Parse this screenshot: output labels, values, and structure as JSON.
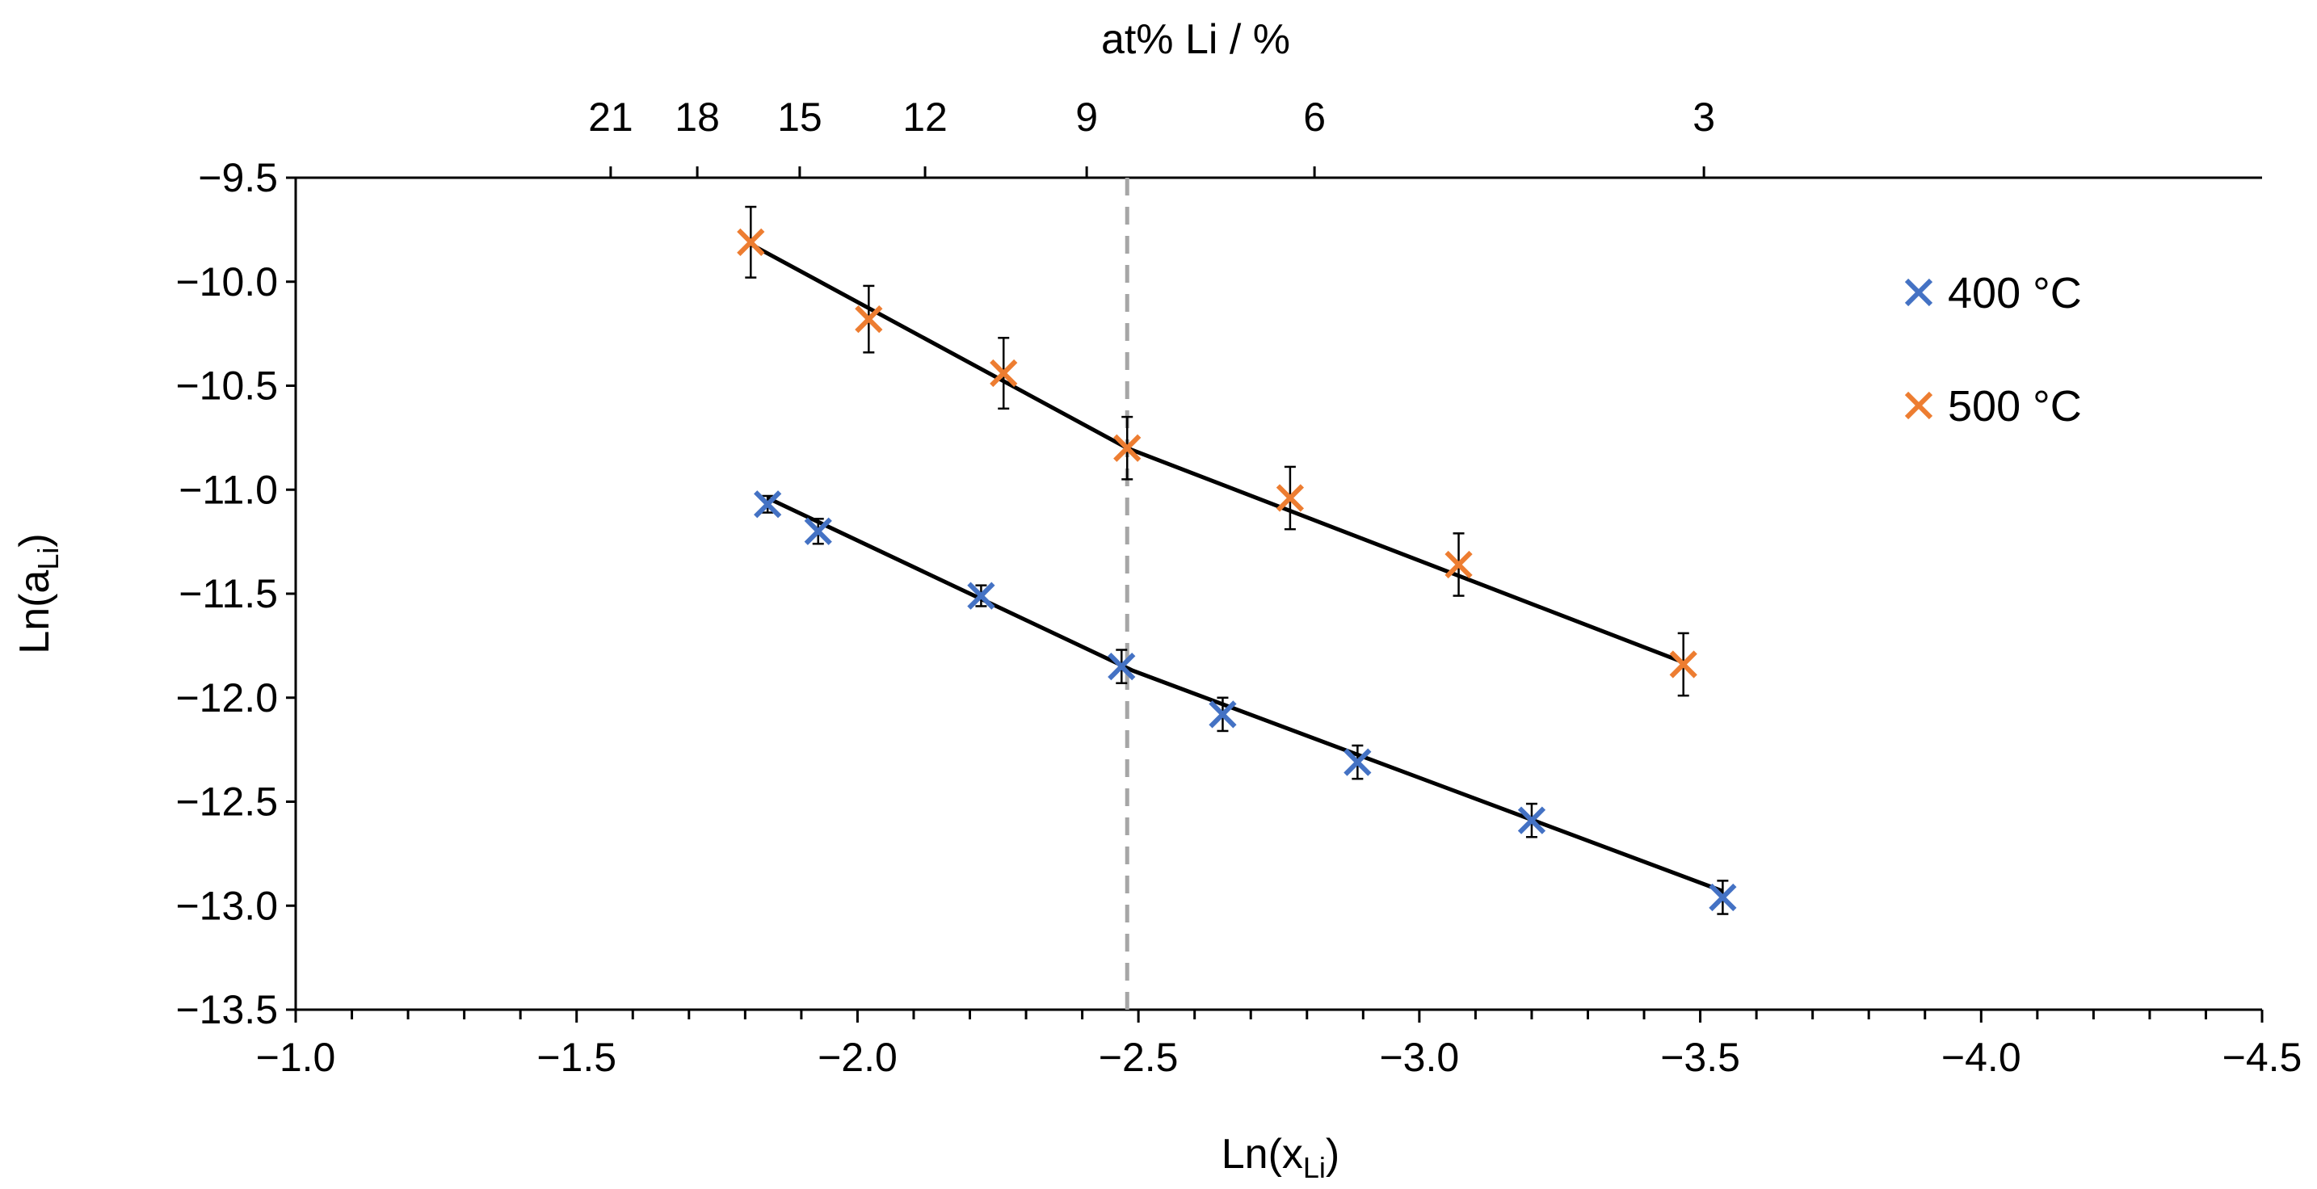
{
  "chart_data": {
    "type": "scatter",
    "xlabel": "Ln(x",
    "xlabel_sub": "Li",
    "xlabel_end": ")",
    "ylabel": "Ln(a",
    "ylabel_sub": "Li",
    "ylabel_end": ")",
    "top_axis_label": "at% Li / %",
    "xlim": [
      -1.0,
      -4.5
    ],
    "ylim": [
      -13.5,
      -9.5
    ],
    "x_ticks": [
      -1.0,
      -1.5,
      -2.0,
      -2.5,
      -3.0,
      -3.5,
      -4.0,
      -4.5
    ],
    "x_tick_labels": [
      "−1.0",
      "−1.5",
      "−2.0",
      "−2.5",
      "−3.0",
      "−3.5",
      "−4.0",
      "−4.5"
    ],
    "y_ticks": [
      -9.5,
      -10.0,
      -10.5,
      -11.0,
      -11.5,
      -12.0,
      -12.5,
      -13.0,
      -13.5
    ],
    "y_tick_labels": [
      "−9.5",
      "−10.0",
      "−10.5",
      "−11.0",
      "−11.5",
      "−12.0",
      "−12.5",
      "−13.0",
      "−13.5"
    ],
    "top_ticks": [
      21,
      18,
      15,
      12,
      9,
      6,
      3
    ],
    "top_tick_labels": [
      "21",
      "18",
      "15",
      "12",
      "9",
      "6",
      "3"
    ],
    "divider_x": -2.48,
    "series": [
      {
        "name": "400 °C",
        "color": "#4472C4",
        "x": [
          -1.84,
          -1.93,
          -2.22,
          -2.47,
          -2.65,
          -2.89,
          -3.2,
          -3.54
        ],
        "y": [
          -11.07,
          -11.2,
          -11.51,
          -11.85,
          -12.08,
          -12.31,
          -12.59,
          -12.96
        ],
        "err": [
          0.04,
          0.06,
          0.05,
          0.08,
          0.08,
          0.08,
          0.08,
          0.08
        ],
        "fit_x": [
          -1.84,
          -2.49,
          -3.54
        ],
        "fit_y": [
          -11.04,
          -11.87,
          -12.93
        ]
      },
      {
        "name": "500 °C",
        "color": "#ED7D31",
        "x": [
          -1.81,
          -2.02,
          -2.26,
          -2.48,
          -2.77,
          -3.07,
          -3.47
        ],
        "y": [
          -9.81,
          -10.18,
          -10.44,
          -10.8,
          -11.04,
          -11.36,
          -11.84
        ],
        "err": [
          0.17,
          0.16,
          0.17,
          0.15,
          0.15,
          0.15,
          0.15
        ],
        "fit_x": [
          -1.81,
          -2.48,
          -3.47
        ],
        "fit_y": [
          -9.82,
          -10.8,
          -11.83
        ]
      }
    ],
    "legend_position": "right"
  }
}
